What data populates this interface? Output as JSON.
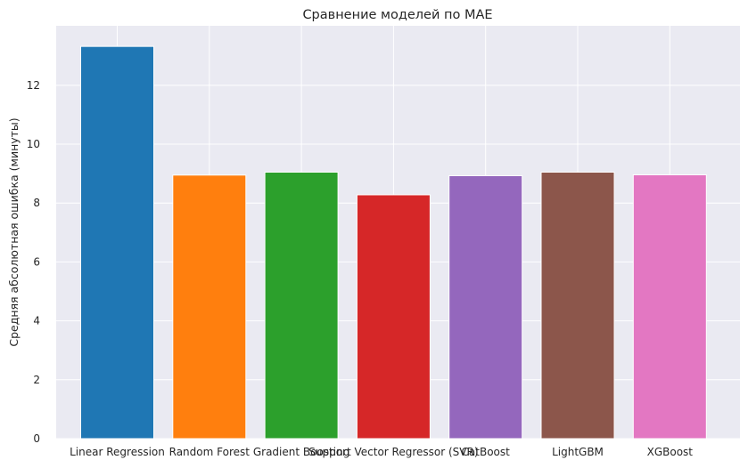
{
  "chart_data": {
    "type": "bar",
    "title": "Сравнение моделей по MAE",
    "xlabel": "",
    "ylabel": "Средняя абсолютная ошибка (минуты)",
    "categories": [
      "Linear Regression",
      "Random Forest",
      "Gradient Boosting",
      "Support Vector Regressor (SVR)",
      "CatBoost",
      "LightGBM",
      "XGBoost"
    ],
    "values": [
      13.32,
      8.95,
      9.05,
      8.28,
      8.93,
      9.05,
      8.96
    ],
    "colors": [
      "#1f77b4",
      "#ff7f0e",
      "#2ca02c",
      "#d62728",
      "#9467bd",
      "#8c564b",
      "#e377c2"
    ],
    "ylim": [
      0,
      14.02
    ],
    "yticks": [
      0,
      2,
      4,
      6,
      8,
      10,
      12
    ],
    "grid": true,
    "background": "#eaeaf2",
    "grid_color": "#ffffff"
  }
}
